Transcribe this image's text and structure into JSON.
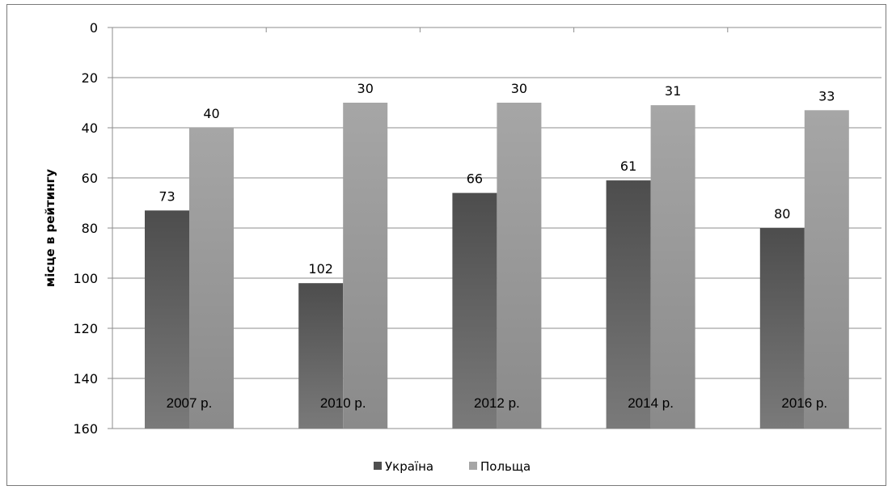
{
  "chart_data": {
    "type": "bar",
    "title": "",
    "xlabel": "",
    "ylabel": "місце в рейтингу",
    "y_inverted": true,
    "ylim": [
      0,
      160
    ],
    "yticks": [
      0,
      20,
      40,
      60,
      80,
      100,
      120,
      140,
      160
    ],
    "grid": true,
    "legend_position": "bottom",
    "categories": [
      "2007 р.",
      "2010 р.",
      "2012 р.",
      "2014 р.",
      "2016 р."
    ],
    "series": [
      {
        "name": "Україна",
        "values": [
          73,
          102,
          66,
          61,
          80
        ],
        "color": "#4f4f4f"
      },
      {
        "name": "Польща",
        "values": [
          40,
          30,
          30,
          31,
          33
        ],
        "color": "#a6a6a6"
      }
    ]
  }
}
